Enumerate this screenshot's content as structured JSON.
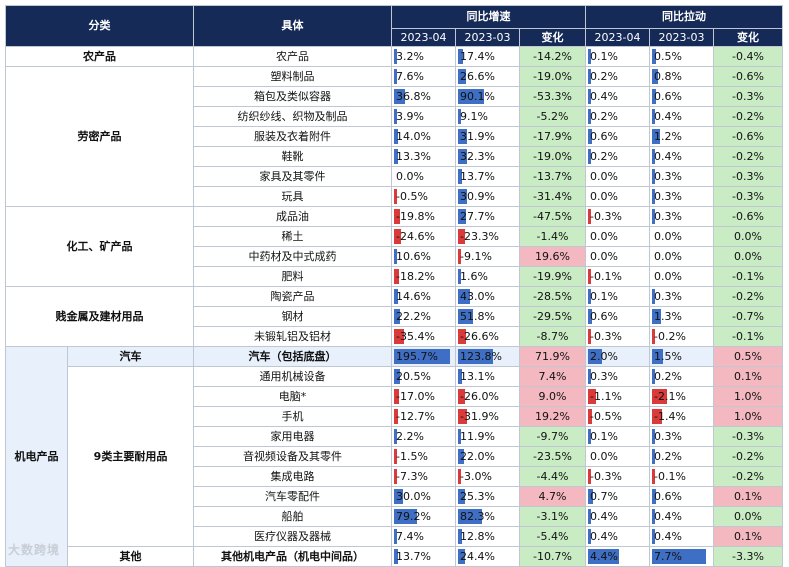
{
  "header": {
    "col_category": "分类",
    "col_detail": "具体",
    "group_yoy_growth": "同比增速",
    "group_yoy_pull": "同比拉动",
    "period_1": "2023-04",
    "period_2": "2023-03",
    "change": "变化"
  },
  "rows": [
    {
      "c1": "农产品",
      "c1_span": 1,
      "c2": "",
      "c2_span": 0,
      "item": "农产品",
      "g1": "3.2%",
      "g2": "17.4%",
      "gc": "-14.2%",
      "p1": "0.1%",
      "p2": "0.5%",
      "pc": "-0.4%"
    },
    {
      "c1": "劳密产品",
      "c1_span": 7,
      "c2": "",
      "c2_span": 0,
      "item": "塑料制品",
      "g1": "7.6%",
      "g2": "26.6%",
      "gc": "-19.0%",
      "p1": "0.2%",
      "p2": "0.8%",
      "pc": "-0.6%"
    },
    {
      "c1": "",
      "item": "箱包及类似容器",
      "g1": "36.8%",
      "g2": "90.1%",
      "gc": "-53.3%",
      "p1": "0.4%",
      "p2": "0.6%",
      "pc": "-0.3%"
    },
    {
      "c1": "",
      "item": "纺织纱线、织物及制品",
      "g1": "3.9%",
      "g2": "9.1%",
      "gc": "-5.2%",
      "p1": "0.2%",
      "p2": "0.4%",
      "pc": "-0.2%"
    },
    {
      "c1": "",
      "item": "服装及衣着附件",
      "g1": "14.0%",
      "g2": "31.9%",
      "gc": "-17.9%",
      "p1": "0.6%",
      "p2": "1.2%",
      "pc": "-0.6%"
    },
    {
      "c1": "",
      "item": "鞋靴",
      "g1": "13.3%",
      "g2": "32.3%",
      "gc": "-19.0%",
      "p1": "0.2%",
      "p2": "0.4%",
      "pc": "-0.2%"
    },
    {
      "c1": "",
      "item": "家具及其零件",
      "g1": "0.0%",
      "g2": "13.7%",
      "gc": "-13.7%",
      "p1": "0.0%",
      "p2": "0.3%",
      "pc": "-0.3%"
    },
    {
      "c1": "",
      "item": "玩具",
      "g1": "-0.5%",
      "g2": "30.9%",
      "gc": "-31.4%",
      "p1": "0.0%",
      "p2": "0.3%",
      "pc": "-0.3%"
    },
    {
      "c1": "化工、矿产品",
      "c1_span": 4,
      "item": "成品油",
      "g1": "-19.8%",
      "g2": "27.7%",
      "gc": "-47.5%",
      "p1": "-0.3%",
      "p2": "0.3%",
      "pc": "-0.6%"
    },
    {
      "c1": "",
      "item": "稀土",
      "g1": "-24.6%",
      "g2": "-23.3%",
      "gc": "-1.4%",
      "p1": "0.0%",
      "p2": "0.0%",
      "pc": "0.0%"
    },
    {
      "c1": "",
      "item": "中药材及中式成药",
      "g1": "10.6%",
      "g2": "-9.1%",
      "gc": "19.6%",
      "p1": "0.0%",
      "p2": "0.0%",
      "pc": "0.0%"
    },
    {
      "c1": "",
      "item": "肥料",
      "g1": "-18.2%",
      "g2": "1.6%",
      "gc": "-19.9%",
      "p1": "-0.1%",
      "p2": "0.0%",
      "pc": "-0.1%"
    },
    {
      "c1": "贱金属及建材用品",
      "c1_span": 3,
      "item": "陶瓷产品",
      "g1": "14.6%",
      "g2": "43.0%",
      "gc": "-28.5%",
      "p1": "0.1%",
      "p2": "0.3%",
      "pc": "-0.2%"
    },
    {
      "c1": "",
      "item": "钢材",
      "g1": "22.2%",
      "g2": "51.8%",
      "gc": "-29.5%",
      "p1": "0.6%",
      "p2": "1.3%",
      "pc": "-0.7%"
    },
    {
      "c1": "",
      "item": "未锻轧铝及铝材",
      "g1": "-35.4%",
      "g2": "-26.6%",
      "gc": "-8.7%",
      "p1": "-0.3%",
      "p2": "-0.2%",
      "pc": "-0.1%"
    },
    {
      "c1": "机电产品",
      "c1_span": 11,
      "c2": "汽车",
      "c2_span": 1,
      "item": "汽车（包括底盘）",
      "g1": "195.7%",
      "g2": "123.8%",
      "gc": "71.9%",
      "p1": "2.0%",
      "p2": "1.5%",
      "pc": "0.5%"
    },
    {
      "c1": "",
      "c2": "9类主要耐用品",
      "c2_span": 9,
      "item": "通用机械设备",
      "g1": "20.5%",
      "g2": "13.1%",
      "gc": "7.4%",
      "p1": "0.3%",
      "p2": "0.2%",
      "pc": "0.1%"
    },
    {
      "c1": "",
      "item": "电脑*",
      "g1": "-17.0%",
      "g2": "-26.0%",
      "gc": "9.0%",
      "p1": "-1.1%",
      "p2": "-2.1%",
      "pc": "1.0%"
    },
    {
      "c1": "",
      "item": "手机",
      "g1": "-12.7%",
      "g2": "-31.9%",
      "gc": "19.2%",
      "p1": "-0.5%",
      "p2": "-1.4%",
      "pc": "1.0%"
    },
    {
      "c1": "",
      "item": "家用电器",
      "g1": "2.2%",
      "g2": "11.9%",
      "gc": "-9.7%",
      "p1": "0.1%",
      "p2": "0.3%",
      "pc": "-0.3%"
    },
    {
      "c1": "",
      "item": "音视频设备及其零件",
      "g1": "-1.5%",
      "g2": "22.0%",
      "gc": "-23.5%",
      "p1": "0.0%",
      "p2": "0.2%",
      "pc": "-0.2%"
    },
    {
      "c1": "",
      "item": "集成电路",
      "g1": "-7.3%",
      "g2": "-3.0%",
      "gc": "-4.4%",
      "p1": "-0.3%",
      "p2": "-0.1%",
      "pc": "-0.2%"
    },
    {
      "c1": "",
      "item": "汽车零配件",
      "g1": "30.0%",
      "g2": "25.3%",
      "gc": "4.7%",
      "p1": "0.7%",
      "p2": "0.6%",
      "pc": "0.1%"
    },
    {
      "c1": "",
      "item": "船舶",
      "g1": "79.2%",
      "g2": "82.3%",
      "gc": "-3.1%",
      "p1": "0.4%",
      "p2": "0.4%",
      "pc": "0.0%"
    },
    {
      "c1": "",
      "item": "医疗仪器及器械",
      "g1": "7.4%",
      "g2": "12.8%",
      "gc": "-5.4%",
      "p1": "0.4%",
      "p2": "0.4%",
      "pc": "0.1%"
    },
    {
      "c1": "",
      "c2": "其他",
      "c2_span": 1,
      "item": "其他机电产品（机电中间品）",
      "g1": "13.7%",
      "g2": "24.4%",
      "gc": "-10.7%",
      "p1": "4.4%",
      "p2": "7.7%",
      "pc": "-3.3%"
    }
  ],
  "watermark": "大数跨境",
  "colors": {
    "header_bg": "#152a57",
    "bar_pos": "#3f6fc4",
    "bar_neg": "#d93a3a",
    "up": "#f4b8c0",
    "down": "#c9ecc4"
  }
}
